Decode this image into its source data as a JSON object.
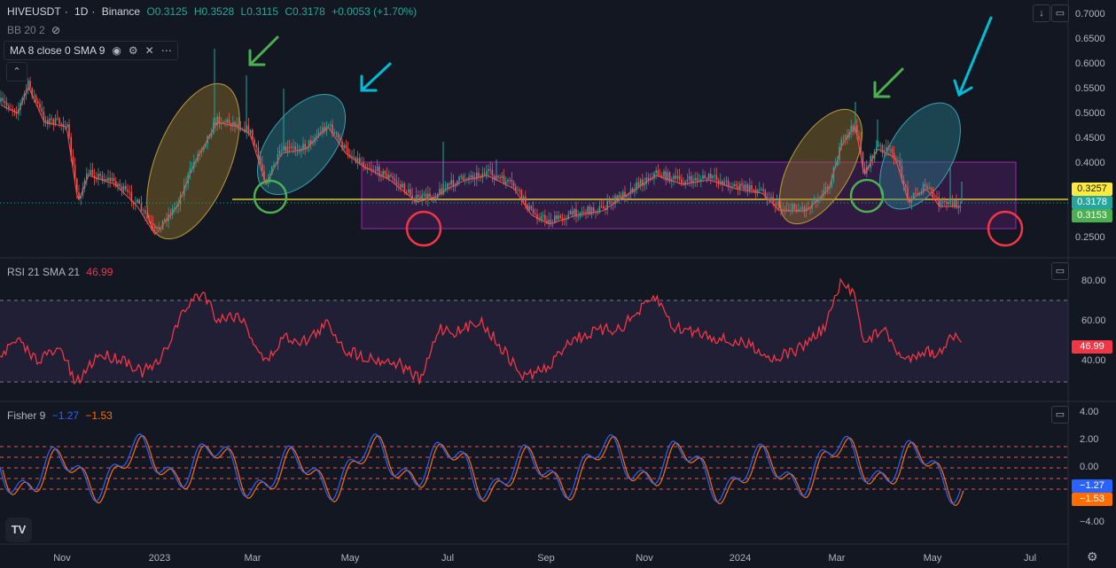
{
  "symbol": {
    "name": "HIVEUSDT",
    "interval": "1D",
    "exchange": "Binance"
  },
  "ohlc": {
    "o": "O0.3125",
    "h": "H0.3528",
    "l": "L0.3115",
    "c": "C0.3178",
    "change": "+0.0053 (+1.70%)"
  },
  "indicators": {
    "bb": "BB 20 2",
    "ma": "MA 8 close 0 SMA 9",
    "rsi_title": "RSI 21 SMA 21",
    "rsi_value": "46.99",
    "fisher_title": "Fisher 9",
    "fisher_v1": "−1.27",
    "fisher_v2": "−1.53"
  },
  "price_axis": [
    "0.7000",
    "0.6500",
    "0.6000",
    "0.5500",
    "0.5000",
    "0.4500",
    "0.4000",
    "0.3500",
    "0.3000",
    "0.2500"
  ],
  "price_labels": {
    "yellow": "0.3257",
    "green": "0.3178",
    "green2": "0.3153"
  },
  "rsi_axis": [
    "80.00",
    "60.00",
    "40.00"
  ],
  "rsi_label": "46.99",
  "fisher_axis": [
    "4.00",
    "2.00",
    "0.00",
    "−2.00",
    "−4.00"
  ],
  "fisher_labels": {
    "blue": "−1.27",
    "orange": "−1.53"
  },
  "time_axis": [
    "Nov",
    "2023",
    "Mar",
    "May",
    "Jul",
    "Sep",
    "Nov",
    "2024",
    "Mar",
    "May",
    "Jul"
  ],
  "colors": {
    "bg": "#131722",
    "up": "#26a69a",
    "down": "#ef5350",
    "rsi": "#f23645",
    "fisher1": "#2962ff",
    "fisher2": "#ff6d00",
    "box": "#9c27b0",
    "yellow": "#ffeb3b"
  },
  "icons": [
    "eye-icon",
    "gear-icon",
    "close-icon",
    "more-icon",
    "chevron-up-icon",
    "download-icon",
    "fullscreen-icon",
    "tradingview-logo-icon"
  ]
}
